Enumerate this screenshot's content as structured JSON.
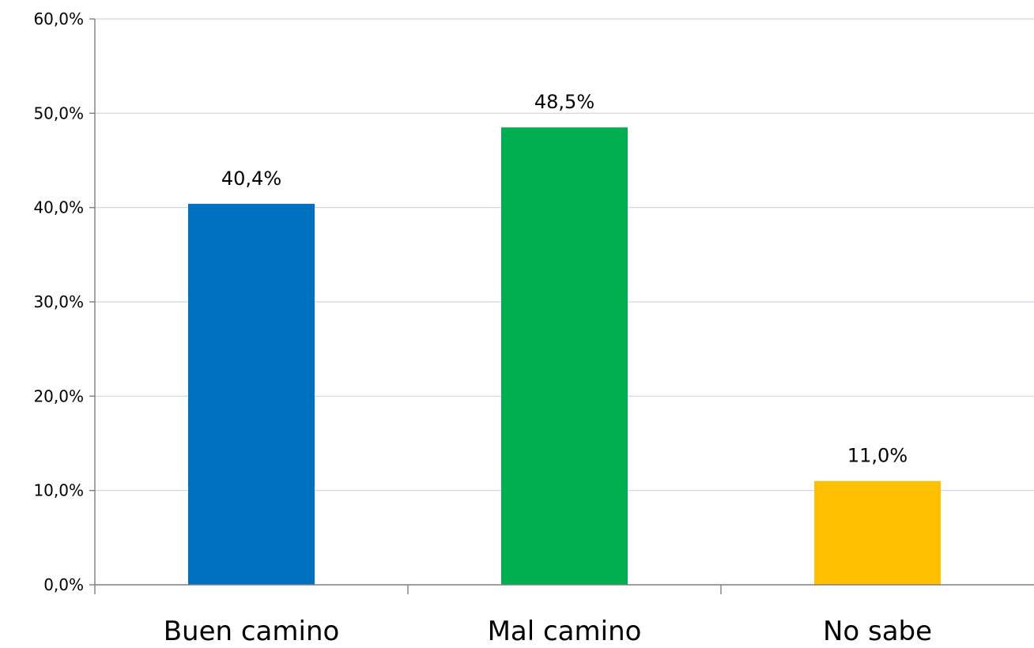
{
  "chart_data": {
    "type": "bar",
    "categories": [
      "Buen camino",
      "Mal camino",
      "No sabe"
    ],
    "values": [
      40.4,
      48.5,
      11.0
    ],
    "data_labels": [
      "40,4%",
      "48,5%",
      "11,0%"
    ],
    "colors": [
      "#0070c0",
      "#00b050",
      "#ffc000"
    ],
    "ylim": [
      0,
      60
    ],
    "yticks": [
      0,
      10,
      20,
      30,
      40,
      50,
      60
    ],
    "ytick_labels": [
      "0,0%",
      "10,0%",
      "20,0%",
      "30,0%",
      "40,0%",
      "50,0%",
      "60,0%"
    ],
    "title": "",
    "xlabel": "",
    "ylabel": "",
    "grid": true,
    "legend": false
  }
}
